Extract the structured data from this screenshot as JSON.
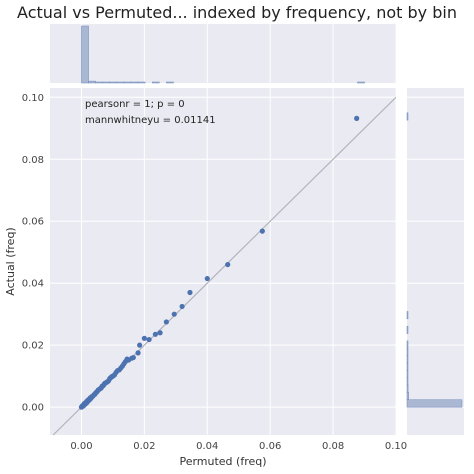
{
  "title": "Actual vs Permuted... indexed by frequency, not by bin",
  "chart_data": {
    "type": "scatter",
    "title": "Actual vs Permuted... indexed by frequency, not by bin",
    "xlabel": "Permuted (freq)",
    "ylabel": "Actual (freq)",
    "xlim": [
      -0.01,
      0.1
    ],
    "ylim": [
      -0.009,
      0.103
    ],
    "xticks": [
      "0.00",
      "0.02",
      "0.04",
      "0.06",
      "0.08",
      "0.10"
    ],
    "xtick_values": [
      0.0,
      0.02,
      0.04,
      0.06,
      0.08,
      0.1
    ],
    "yticks": [
      "0.00",
      "0.02",
      "0.04",
      "0.06",
      "0.08",
      "0.10"
    ],
    "ytick_values": [
      0.0,
      0.02,
      0.04,
      0.06,
      0.08,
      0.1
    ],
    "grid": true,
    "annotations": [
      "pearsonr = 1; p = 0",
      "mannwhitneyu = 0.01141"
    ],
    "reference_line": {
      "from": [
        -0.01,
        -0.01
      ],
      "to": [
        0.1,
        0.1
      ]
    },
    "points": [
      [
        0.0,
        0.0
      ],
      [
        0.0003,
        0.0004
      ],
      [
        0.0005,
        0.0003
      ],
      [
        0.0007,
        0.0008
      ],
      [
        0.0008,
        0.0006
      ],
      [
        0.001,
        0.0012
      ],
      [
        0.0012,
        0.001
      ],
      [
        0.0014,
        0.0015
      ],
      [
        0.0016,
        0.0013
      ],
      [
        0.0018,
        0.002
      ],
      [
        0.002,
        0.0018
      ],
      [
        0.0022,
        0.0024
      ],
      [
        0.0025,
        0.0023
      ],
      [
        0.0028,
        0.003
      ],
      [
        0.003,
        0.0028
      ],
      [
        0.0033,
        0.0034
      ],
      [
        0.0036,
        0.0035
      ],
      [
        0.004,
        0.004
      ],
      [
        0.0043,
        0.0042
      ],
      [
        0.0046,
        0.0047
      ],
      [
        0.005,
        0.005
      ],
      [
        0.0053,
        0.0055
      ],
      [
        0.0056,
        0.0057
      ],
      [
        0.006,
        0.006
      ],
      [
        0.0063,
        0.0062
      ],
      [
        0.0066,
        0.0068
      ],
      [
        0.007,
        0.007
      ],
      [
        0.0073,
        0.0075
      ],
      [
        0.0076,
        0.0078
      ],
      [
        0.008,
        0.008
      ],
      [
        0.0083,
        0.0082
      ],
      [
        0.0086,
        0.0085
      ],
      [
        0.009,
        0.0092
      ],
      [
        0.0093,
        0.0095
      ],
      [
        0.0096,
        0.0098
      ],
      [
        0.01,
        0.01
      ],
      [
        0.0105,
        0.0104
      ],
      [
        0.011,
        0.0112
      ],
      [
        0.0115,
        0.0118
      ],
      [
        0.012,
        0.012
      ],
      [
        0.0125,
        0.0126
      ],
      [
        0.013,
        0.0132
      ],
      [
        0.0135,
        0.014
      ],
      [
        0.014,
        0.0147
      ],
      [
        0.0145,
        0.0155
      ],
      [
        0.015,
        0.0152
      ],
      [
        0.016,
        0.0158
      ],
      [
        0.0165,
        0.016
      ],
      [
        0.018,
        0.0175
      ],
      [
        0.0185,
        0.02
      ],
      [
        0.02,
        0.0222
      ],
      [
        0.0215,
        0.0218
      ],
      [
        0.0235,
        0.0235
      ],
      [
        0.025,
        0.024
      ],
      [
        0.027,
        0.0275
      ],
      [
        0.0295,
        0.03
      ],
      [
        0.032,
        0.0325
      ],
      [
        0.0345,
        0.037
      ],
      [
        0.04,
        0.0415
      ],
      [
        0.0465,
        0.046
      ],
      [
        0.0575,
        0.0568
      ],
      [
        0.0875,
        0.0932
      ]
    ],
    "marginal_x": {
      "type": "histogram",
      "range": [
        0.0,
        0.09
      ],
      "bins": 40,
      "counts": [
        120,
        4,
        2,
        1,
        1,
        1,
        1,
        1,
        1,
        0,
        1,
        0,
        1,
        0,
        0,
        0,
        0,
        0,
        0,
        0,
        0,
        0,
        0,
        0,
        0,
        0,
        0,
        0,
        0,
        0,
        0,
        0,
        0,
        0,
        0,
        0,
        0,
        0,
        0,
        1
      ]
    },
    "marginal_y": {
      "type": "histogram",
      "range": [
        0.0,
        0.095
      ],
      "bins": 40,
      "counts": [
        100,
        3,
        2,
        1,
        1,
        1,
        1,
        1,
        1,
        0,
        1,
        0,
        1,
        0,
        0,
        0,
        0,
        0,
        0,
        0,
        0,
        0,
        0,
        0,
        0,
        0,
        0,
        0,
        0,
        0,
        0,
        0,
        0,
        0,
        0,
        0,
        0,
        0,
        0,
        1
      ]
    }
  },
  "colors": {
    "plot_bg": "#eaeaf2",
    "grid": "#ffffff",
    "point": "#4c72b0",
    "hist_fill": "#a9b7d3",
    "hist_edge": "#6f88b8",
    "diagonal": "#b3b3bd"
  }
}
